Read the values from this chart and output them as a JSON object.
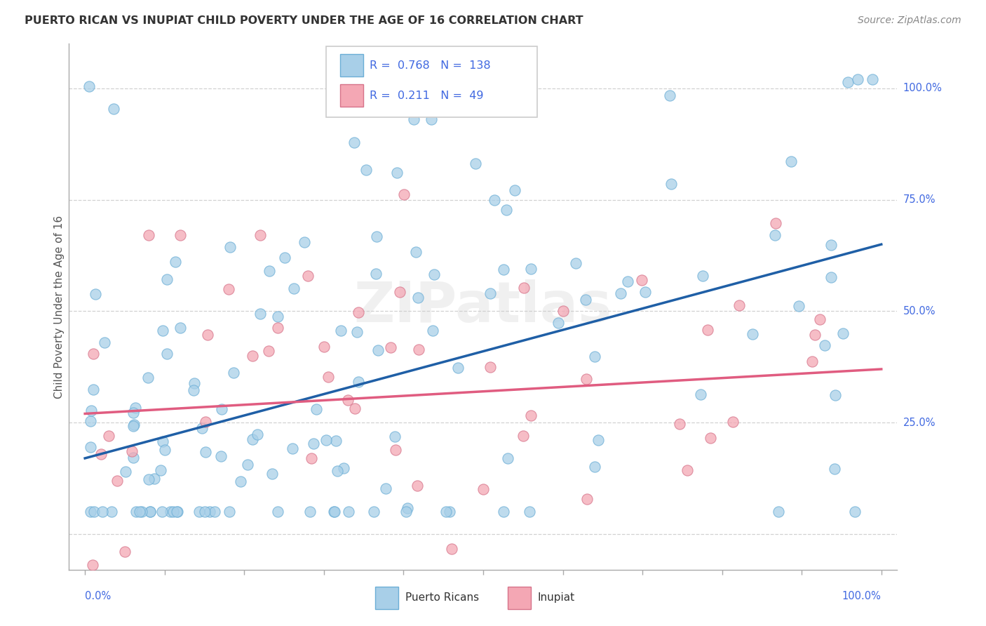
{
  "title": "PUERTO RICAN VS INUPIAT CHILD POVERTY UNDER THE AGE OF 16 CORRELATION CHART",
  "source": "Source: ZipAtlas.com",
  "ylabel": "Child Poverty Under the Age of 16",
  "blue_R": 0.768,
  "blue_N": 138,
  "pink_R": 0.211,
  "pink_N": 49,
  "blue_color": "#a8cfe8",
  "blue_edge_color": "#6baed6",
  "blue_line_color": "#1f5fa6",
  "pink_color": "#f4a7b4",
  "pink_edge_color": "#d6738a",
  "pink_line_color": "#e05c80",
  "watermark": "ZIPatlas",
  "legend_label_blue": "Puerto Ricans",
  "legend_label_pink": "Inupiat",
  "blue_line_x0": 0.0,
  "blue_line_y0": 0.17,
  "blue_line_x1": 1.0,
  "blue_line_y1": 0.65,
  "pink_line_x0": 0.0,
  "pink_line_y0": 0.27,
  "pink_line_x1": 1.0,
  "pink_line_y1": 0.37,
  "xlim": [
    -0.02,
    1.02
  ],
  "ylim": [
    -0.08,
    1.1
  ],
  "bg_color": "#ffffff",
  "grid_color": "#cccccc",
  "title_color": "#333333",
  "axis_label_color": "#4169E1",
  "ylabel_color": "#555555"
}
